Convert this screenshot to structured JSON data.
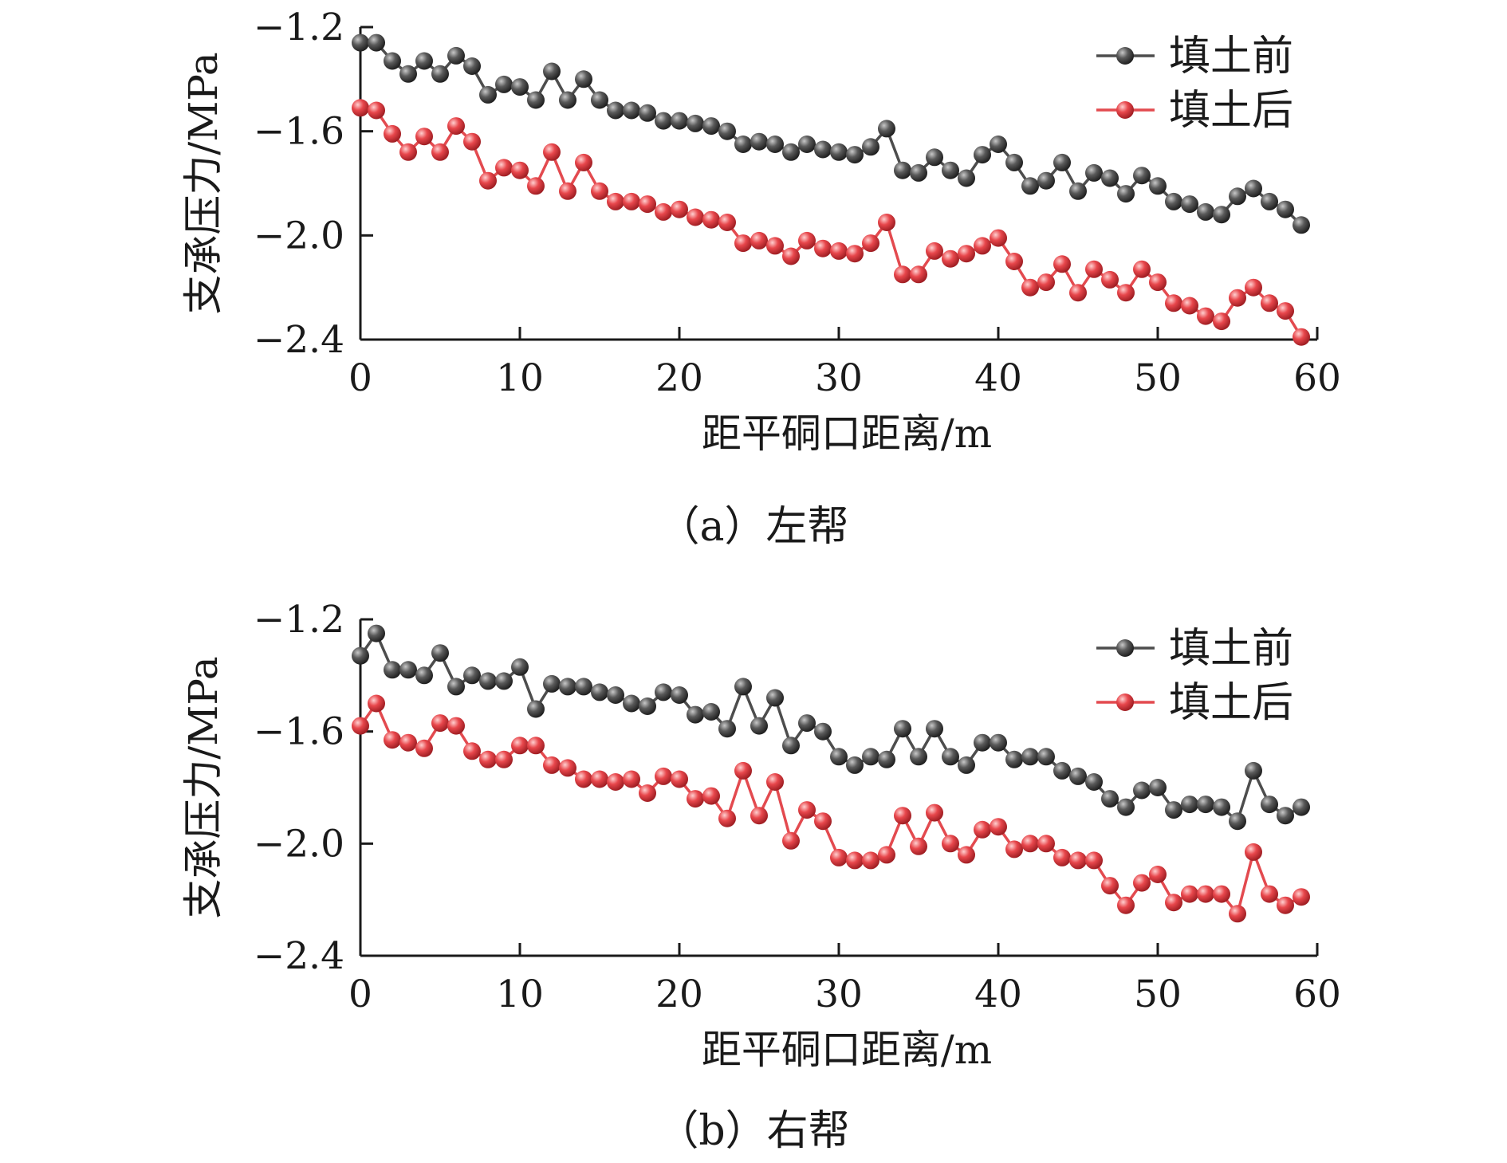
{
  "figure": {
    "captions": [
      "（a）左帮",
      "（b）右帮"
    ]
  },
  "chart_data": [
    {
      "type": "line",
      "panel": "（a）左帮",
      "xlabel": "距平硐口距离/m",
      "ylabel": "支承压力/MPa",
      "xlim": [
        0,
        60
      ],
      "ylim": [
        -2.4,
        -1.2
      ],
      "xticks": [
        0,
        10,
        20,
        30,
        40,
        50,
        60
      ],
      "yticks": [
        -1.2,
        -1.6,
        -2.0,
        -2.4
      ],
      "xtick_labels": [
        "0",
        "10",
        "20",
        "30",
        "40",
        "50",
        "60"
      ],
      "ytick_labels": [
        "−1.2",
        "−1.6",
        "−2.0",
        "−2.4"
      ],
      "grid": false,
      "legend": "top-right",
      "x": [
        0,
        1,
        2,
        3,
        4,
        5,
        6,
        7,
        8,
        9,
        10,
        11,
        12,
        13,
        14,
        15,
        16,
        17,
        18,
        19,
        20,
        21,
        22,
        23,
        24,
        25,
        26,
        27,
        28,
        29,
        30,
        31,
        32,
        33,
        34,
        35,
        36,
        37,
        38,
        39,
        40,
        41,
        42,
        43,
        44,
        45,
        46,
        47,
        48,
        49,
        50,
        51,
        52,
        53,
        54,
        55,
        56,
        57,
        58,
        59
      ],
      "series": [
        {
          "name": "填土前",
          "color": "#4d4d4d",
          "values": [
            -1.26,
            -1.26,
            -1.33,
            -1.38,
            -1.33,
            -1.38,
            -1.31,
            -1.35,
            -1.46,
            -1.42,
            -1.43,
            -1.48,
            -1.37,
            -1.48,
            -1.4,
            -1.48,
            -1.52,
            -1.52,
            -1.53,
            -1.56,
            -1.56,
            -1.57,
            -1.58,
            -1.6,
            -1.65,
            -1.64,
            -1.65,
            -1.68,
            -1.65,
            -1.67,
            -1.68,
            -1.69,
            -1.66,
            -1.59,
            -1.75,
            -1.76,
            -1.7,
            -1.75,
            -1.78,
            -1.69,
            -1.65,
            -1.72,
            -1.81,
            -1.79,
            -1.72,
            -1.83,
            -1.76,
            -1.78,
            -1.84,
            -1.77,
            -1.81,
            -1.87,
            -1.88,
            -1.91,
            -1.92,
            -1.85,
            -1.82,
            -1.87,
            -1.9,
            -1.96
          ]
        },
        {
          "name": "填土后",
          "color": "#e34a4f",
          "values": [
            -1.51,
            -1.52,
            -1.61,
            -1.68,
            -1.62,
            -1.68,
            -1.58,
            -1.64,
            -1.79,
            -1.74,
            -1.75,
            -1.81,
            -1.68,
            -1.83,
            -1.72,
            -1.83,
            -1.87,
            -1.87,
            -1.88,
            -1.91,
            -1.9,
            -1.93,
            -1.94,
            -1.95,
            -2.03,
            -2.02,
            -2.04,
            -2.08,
            -2.02,
            -2.05,
            -2.06,
            -2.07,
            -2.03,
            -1.95,
            -2.15,
            -2.15,
            -2.06,
            -2.09,
            -2.07,
            -2.04,
            -2.01,
            -2.1,
            -2.2,
            -2.18,
            -2.11,
            -2.22,
            -2.13,
            -2.17,
            -2.22,
            -2.13,
            -2.18,
            -2.26,
            -2.27,
            -2.31,
            -2.33,
            -2.24,
            -2.2,
            -2.26,
            -2.29,
            -2.39
          ]
        }
      ]
    },
    {
      "type": "line",
      "panel": "（b）右帮",
      "xlabel": "距平硐口距离/m",
      "ylabel": "支承压力/MPa",
      "xlim": [
        0,
        60
      ],
      "ylim": [
        -2.4,
        -1.2
      ],
      "xticks": [
        0,
        10,
        20,
        30,
        40,
        50,
        60
      ],
      "yticks": [
        -1.2,
        -1.6,
        -2.0,
        -2.4
      ],
      "xtick_labels": [
        "0",
        "10",
        "20",
        "30",
        "40",
        "50",
        "60"
      ],
      "ytick_labels": [
        "−1.2",
        "−1.6",
        "−2.0",
        "−2.4"
      ],
      "grid": false,
      "legend": "top-right",
      "x": [
        0,
        1,
        2,
        3,
        4,
        5,
        6,
        7,
        8,
        9,
        10,
        11,
        12,
        13,
        14,
        15,
        16,
        17,
        18,
        19,
        20,
        21,
        22,
        23,
        24,
        25,
        26,
        27,
        28,
        29,
        30,
        31,
        32,
        33,
        34,
        35,
        36,
        37,
        38,
        39,
        40,
        41,
        42,
        43,
        44,
        45,
        46,
        47,
        48,
        49,
        50,
        51,
        52,
        53,
        54,
        55,
        56,
        57,
        58,
        59
      ],
      "series": [
        {
          "name": "填土前",
          "color": "#4d4d4d",
          "values": [
            -1.33,
            -1.25,
            -1.38,
            -1.38,
            -1.4,
            -1.32,
            -1.44,
            -1.4,
            -1.42,
            -1.42,
            -1.37,
            -1.52,
            -1.43,
            -1.44,
            -1.44,
            -1.46,
            -1.47,
            -1.5,
            -1.51,
            -1.46,
            -1.47,
            -1.54,
            -1.53,
            -1.59,
            -1.44,
            -1.58,
            -1.48,
            -1.65,
            -1.57,
            -1.6,
            -1.69,
            -1.72,
            -1.69,
            -1.7,
            -1.59,
            -1.69,
            -1.59,
            -1.69,
            -1.72,
            -1.64,
            -1.64,
            -1.7,
            -1.69,
            -1.69,
            -1.74,
            -1.76,
            -1.78,
            -1.84,
            -1.87,
            -1.81,
            -1.8,
            -1.88,
            -1.86,
            -1.86,
            -1.87,
            -1.92,
            -1.74,
            -1.86,
            -1.9,
            -1.87
          ]
        },
        {
          "name": "填土后",
          "color": "#e34a4f",
          "values": [
            -1.58,
            -1.5,
            -1.63,
            -1.64,
            -1.66,
            -1.57,
            -1.58,
            -1.67,
            -1.7,
            -1.7,
            -1.65,
            -1.65,
            -1.72,
            -1.73,
            -1.77,
            -1.77,
            -1.78,
            -1.77,
            -1.82,
            -1.76,
            -1.77,
            -1.84,
            -1.83,
            -1.91,
            -1.74,
            -1.9,
            -1.78,
            -1.99,
            -1.88,
            -1.92,
            -2.05,
            -2.06,
            -2.06,
            -2.04,
            -1.9,
            -2.01,
            -1.89,
            -2.0,
            -2.04,
            -1.95,
            -1.94,
            -2.02,
            -2.0,
            -2.0,
            -2.05,
            -2.06,
            -2.06,
            -2.15,
            -2.22,
            -2.14,
            -2.11,
            -2.21,
            -2.18,
            -2.18,
            -2.18,
            -2.25,
            -2.03,
            -2.18,
            -2.22,
            -2.19
          ]
        }
      ]
    }
  ]
}
